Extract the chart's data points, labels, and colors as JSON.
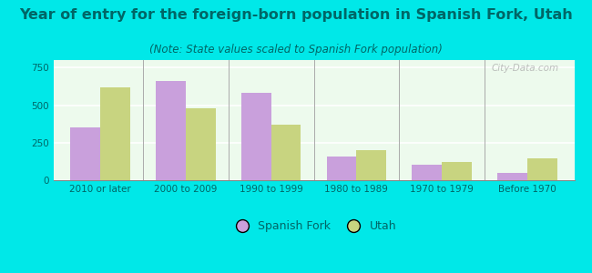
{
  "categories": [
    "2010 or later",
    "2000 to 2009",
    "1990 to 1999",
    "1980 to 1989",
    "1970 to 1979",
    "Before 1970"
  ],
  "spanish_fork": [
    350,
    660,
    580,
    155,
    105,
    50
  ],
  "utah": [
    620,
    480,
    370,
    200,
    120,
    145
  ],
  "spanish_fork_color": "#c9a0dc",
  "utah_color": "#c8d480",
  "title": "Year of entry for the foreign-born population in Spanish Fork, Utah",
  "subtitle": "(Note: State values scaled to Spanish Fork population)",
  "ylim": [
    0,
    800
  ],
  "yticks": [
    0,
    250,
    500,
    750
  ],
  "background_color": "#00e8e8",
  "plot_bg_color": "#edfaed",
  "bar_width": 0.35,
  "title_fontsize": 11.5,
  "subtitle_fontsize": 8.5,
  "tick_fontsize": 7.5,
  "title_color": "#006666",
  "subtitle_color": "#006666",
  "tick_color": "#006666",
  "legend_label_sf": "Spanish Fork",
  "legend_label_ut": "Utah",
  "watermark": "City-Data.com"
}
